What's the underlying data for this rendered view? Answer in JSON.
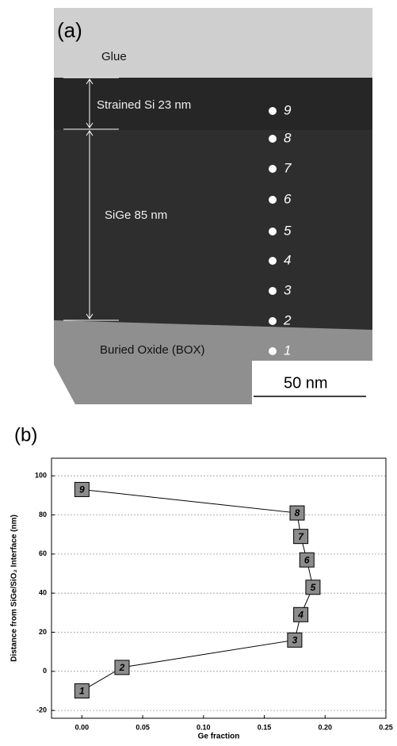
{
  "panel_a": {
    "label": "(a)",
    "glue": "Glue",
    "strained_si": "Strained Si  23 nm",
    "sige": "SiGe 85 nm",
    "box": "Buried Oxide (BOX)",
    "scale_bar": "50 nm",
    "point_labels": [
      "1",
      "2",
      "3",
      "4",
      "5",
      "6",
      "7",
      "8",
      "9"
    ]
  },
  "chart_data": {
    "type": "line",
    "label": "(b)",
    "x_label": "Ge fraction",
    "y_label": "Distance from SiGe/SiO₂ Interface (nm)",
    "x": [
      0.0,
      0.033,
      0.175,
      0.18,
      0.19,
      0.185,
      0.18,
      0.177,
      0.0
    ],
    "values": [
      -10,
      2,
      16,
      29,
      43,
      57,
      69,
      81,
      93
    ],
    "point_labels": [
      "1",
      "2",
      "3",
      "4",
      "5",
      "6",
      "7",
      "8",
      "9"
    ],
    "color": "#8c8c8c",
    "xlim": [
      -0.025,
      0.25
    ],
    "ylim": [
      -24,
      109
    ],
    "xticks": [
      {
        "value": 0,
        "label": "0.00"
      },
      0.05,
      {
        "value": 0.1,
        "label": "0.10"
      },
      0.15,
      {
        "value": 0.2,
        "label": "0.20"
      },
      0.25
    ],
    "yticks": [
      -20,
      0,
      20,
      40,
      60,
      80,
      100
    ],
    "grid": true
  }
}
